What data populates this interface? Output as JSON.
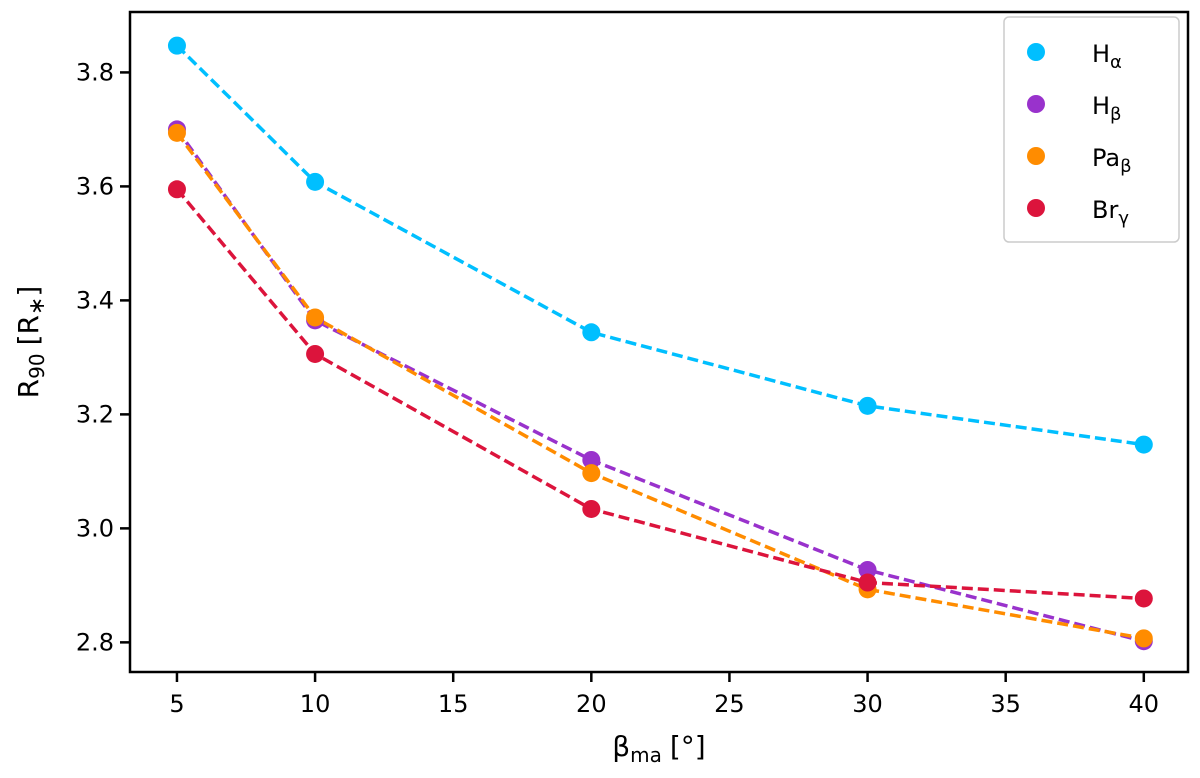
{
  "chart_data": {
    "type": "line",
    "xlabel": {
      "base": "β",
      "sub": "ma",
      "unit": "[°]"
    },
    "ylabel": {
      "base": "R",
      "sub": "90",
      "unit": "[R",
      "unit_sub": "∗",
      "unit_end": "]"
    },
    "xlim": [
      3.3,
      41.6
    ],
    "ylim": [
      2.748,
      3.906
    ],
    "xticks": [
      5,
      10,
      15,
      20,
      25,
      30,
      35,
      40
    ],
    "yticks": [
      2.8,
      3.0,
      3.2,
      3.4,
      3.6,
      3.8
    ],
    "ytick_labels": [
      "2.8",
      "3.0",
      "3.2",
      "3.4",
      "3.6",
      "3.8"
    ],
    "x": [
      5,
      10,
      20,
      30,
      40
    ],
    "legend_position": "top-right",
    "line_style": "dashed",
    "series": [
      {
        "name": "H",
        "sub": "α",
        "color": "#00bfff",
        "values": [
          3.847,
          3.608,
          3.344,
          3.215,
          3.147
        ]
      },
      {
        "name": "H",
        "sub": "β",
        "color": "#9932cc",
        "values": [
          3.7,
          3.365,
          3.12,
          2.927,
          2.802
        ]
      },
      {
        "name": "Pa",
        "sub": "β",
        "color": "#ff8c00",
        "values": [
          3.694,
          3.37,
          3.097,
          2.893,
          2.807
        ]
      },
      {
        "name": "Br",
        "sub": "γ",
        "color": "#dc143c",
        "values": [
          3.595,
          3.306,
          3.034,
          2.905,
          2.877
        ]
      }
    ]
  }
}
